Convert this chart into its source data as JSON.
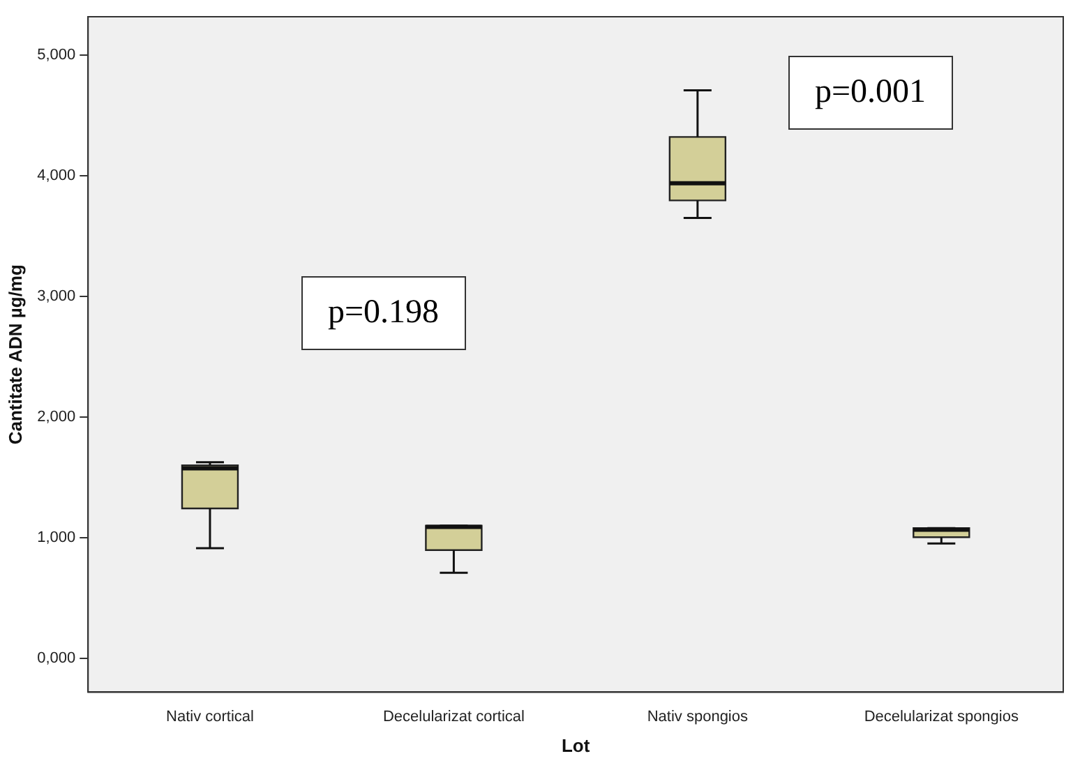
{
  "chart_data": {
    "type": "box",
    "xlabel": "Lot",
    "ylabel": "Cantitate ADN µg/mg",
    "categories": [
      "Nativ cortical",
      "Decelularizat cortical",
      "Nativ spongios",
      "Decelularizat spongios"
    ],
    "boxes": [
      {
        "low": 913,
        "q1": 1243,
        "median": 1575,
        "q3": 1600,
        "high": 1626
      },
      {
        "low": 710,
        "q1": 898,
        "median": 1090,
        "q3": 1100,
        "high": 1100
      },
      {
        "low": 3651,
        "q1": 3797,
        "median": 3939,
        "q3": 4323,
        "high": 4710
      },
      {
        "low": 952,
        "q1": 1005,
        "median": 1067,
        "q3": 1080,
        "high": 1080
      }
    ],
    "color": "#d3cf98",
    "ylim": [
      -280,
      5320
    ],
    "yticks": [
      {
        "value": 0,
        "label": "0,000"
      },
      {
        "value": 1000,
        "label": "1,000"
      },
      {
        "value": 2000,
        "label": "2,000"
      },
      {
        "value": 3000,
        "label": "3,000"
      },
      {
        "value": 4000,
        "label": "4,000"
      },
      {
        "value": 5000,
        "label": "5,000"
      }
    ],
    "annotations": [
      "p=0.198",
      "p=0.001"
    ],
    "grid": false,
    "legend": false
  }
}
